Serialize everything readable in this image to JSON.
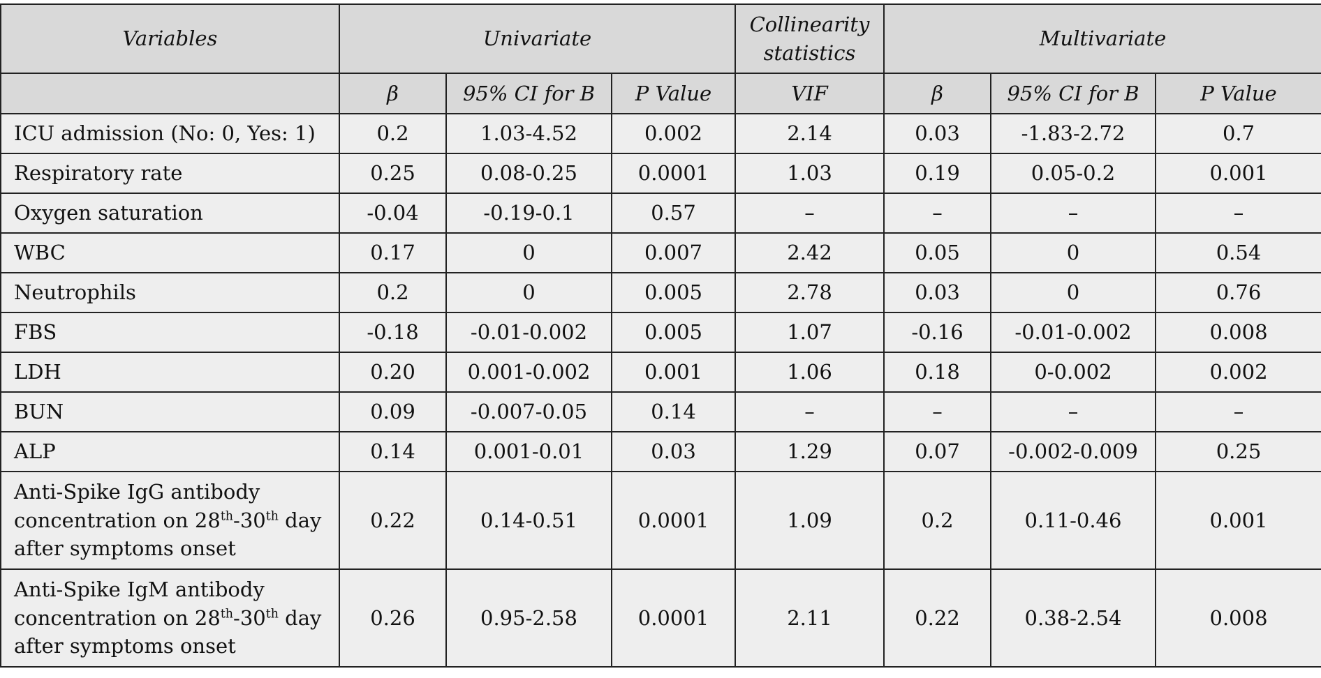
{
  "header": {
    "row1": [
      "Variables",
      "Univariate",
      "Collinearity statistics",
      "Multivariate"
    ],
    "row2": [
      "β",
      "95% CI for B",
      "P Value",
      "VIF",
      "β",
      "95% CI for B",
      "P Value"
    ]
  },
  "rows": [
    {
      "variable": [
        "ICU admission (No: 0, Yes: 1)"
      ],
      "values": [
        "0.2",
        "1.03-4.52",
        "0.002",
        "2.14",
        "0.03",
        "-1.83-2.72",
        "0.7"
      ]
    },
    {
      "variable": [
        "Respiratory rate"
      ],
      "values": [
        "0.25",
        "0.08-0.25",
        "0.0001",
        "1.03",
        "0.19",
        "0.05-0.2",
        "0.001"
      ]
    },
    {
      "variable": [
        "Oxygen saturation"
      ],
      "values": [
        "-0.04",
        "-0.19-0.1",
        "0.57",
        "–",
        "–",
        "–",
        "–"
      ]
    },
    {
      "variable": [
        "WBC"
      ],
      "values": [
        "0.17",
        "0",
        "0.007",
        "2.42",
        "0.05",
        "0",
        "0.54"
      ]
    },
    {
      "variable": [
        "Neutrophils"
      ],
      "values": [
        "0.2",
        "0",
        "0.005",
        "2.78",
        "0.03",
        "0",
        "0.76"
      ]
    },
    {
      "variable": [
        "FBS"
      ],
      "values": [
        "-0.18",
        "-0.01-0.002",
        "0.005",
        "1.07",
        "-0.16",
        "-0.01-0.002",
        "0.008"
      ]
    },
    {
      "variable": [
        "LDH"
      ],
      "values": [
        "0.20",
        "0.001-0.002",
        "0.001",
        "1.06",
        "0.18",
        "0-0.002",
        "0.002"
      ]
    },
    {
      "variable": [
        "BUN"
      ],
      "values": [
        "0.09",
        "-0.007-0.05",
        "0.14",
        "–",
        "–",
        "–",
        "–"
      ]
    },
    {
      "variable": [
        "ALP"
      ],
      "values": [
        "0.14",
        "0.001-0.01",
        "0.03",
        "1.29",
        "0.07",
        "-0.002-0.009",
        "0.25"
      ]
    },
    {
      "variable": [
        "Anti-Spike IgG antibody concentration on 28",
        "th",
        "-30",
        "th",
        " day after symptoms onset"
      ],
      "values": [
        "0.22",
        "0.14-0.51",
        "0.0001",
        "1.09",
        "0.2",
        "0.11-0.46",
        "0.001"
      ]
    },
    {
      "variable": [
        "Anti-Spike IgM antibody concentration on 28",
        "th",
        "-30",
        "th",
        " day after symptoms onset"
      ],
      "values": [
        "0.26",
        "0.95-2.58",
        "0.0001",
        "2.11",
        "0.22",
        "0.38-2.54",
        "0.008"
      ]
    }
  ]
}
